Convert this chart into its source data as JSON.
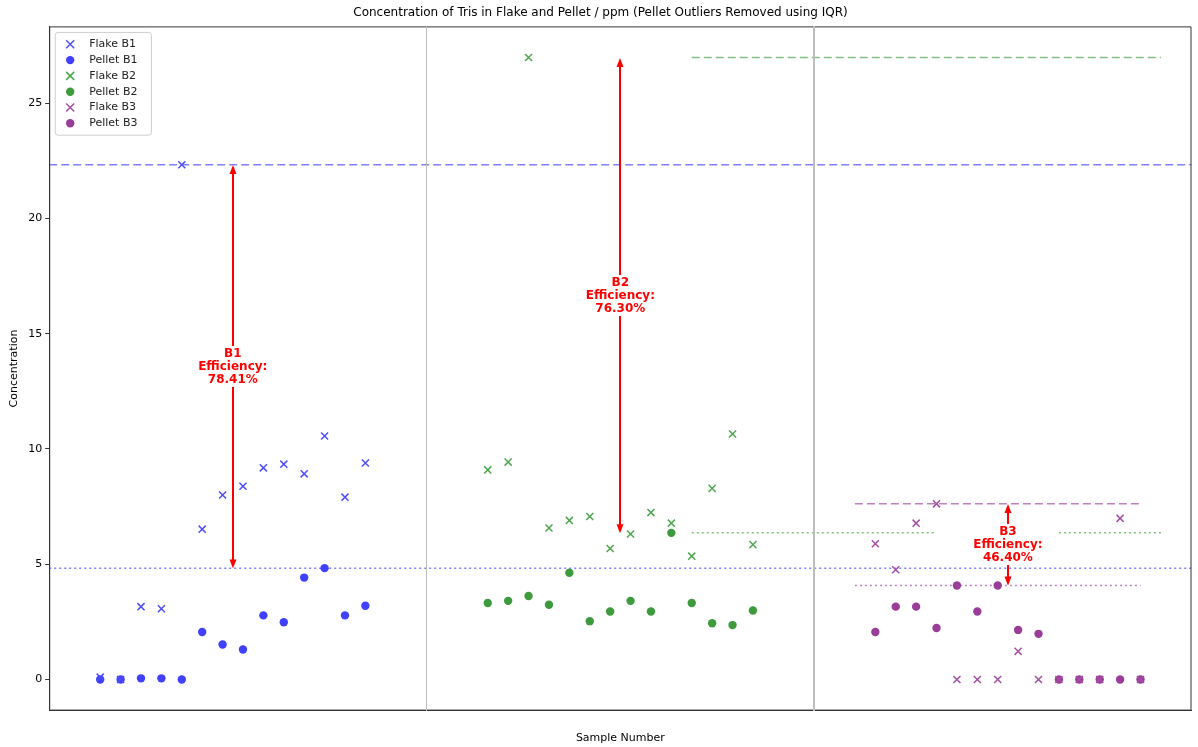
{
  "chart_data": {
    "type": "scatter",
    "title": "Concentration of Tris in Flake and Pellet / ppm (Pellet Outliers Removed using IQR)",
    "xlabel": "Sample Number",
    "ylabel": "Concentration",
    "categories": [
      null,
      null,
      null,
      null,
      null,
      null,
      null,
      null,
      null,
      null,
      null,
      null,
      null,
      null,
      null,
      null,
      null,
      null,
      null,
      null,
      null,
      null,
      null,
      null,
      null,
      null,
      null,
      null,
      null,
      null,
      null,
      null,
      null,
      null,
      null,
      null,
      null,
      null,
      null,
      null,
      null,
      null,
      null,
      null,
      null,
      null,
      null,
      null,
      null,
      null,
      null,
      null,
      null,
      null,
      null,
      null
    ],
    "ylim": [
      -1.35,
      28.33
    ],
    "yticks": [
      0,
      5,
      10,
      15,
      20,
      25
    ],
    "grid": false,
    "legend": "top left",
    "series": [
      {
        "name": "Flake B1",
        "color": "#4d4dff",
        "marker": "cross",
        "values": [
          null,
          null,
          0.1,
          0.0,
          3.16,
          3.07,
          22.33,
          6.52,
          8.0,
          8.38,
          9.18,
          9.34,
          8.92,
          10.56,
          7.91,
          9.39,
          null,
          null,
          null,
          null,
          null,
          null,
          null,
          null,
          null,
          null,
          null,
          null,
          null,
          null,
          null,
          null,
          null,
          null,
          null,
          null,
          null,
          null,
          null,
          null,
          null,
          null,
          null,
          null,
          null,
          null,
          null,
          null,
          null,
          null,
          null,
          null,
          null,
          null,
          null,
          null
        ]
      },
      {
        "name": "Pellet B1",
        "color": "#4040ff",
        "marker": "circle",
        "values": [
          null,
          null,
          0.0,
          0.0,
          0.05,
          0.05,
          0.0,
          2.06,
          1.52,
          1.3,
          2.78,
          2.48,
          4.42,
          4.83,
          2.78,
          3.2,
          null,
          null,
          null,
          null,
          null,
          null,
          null,
          null,
          null,
          null,
          null,
          null,
          null,
          null,
          null,
          null,
          null,
          null,
          null,
          null,
          null,
          null,
          null,
          null,
          null,
          null,
          null,
          null,
          null,
          null,
          null,
          null,
          null,
          null,
          null,
          null,
          null,
          null,
          null,
          null
        ]
      },
      {
        "name": "Flake B2",
        "color": "#4da64d",
        "marker": "cross",
        "values": [
          null,
          null,
          null,
          null,
          null,
          null,
          null,
          null,
          null,
          null,
          null,
          null,
          null,
          null,
          null,
          null,
          null,
          null,
          null,
          null,
          null,
          9.09,
          9.43,
          26.98,
          6.57,
          6.9,
          7.07,
          5.68,
          6.31,
          7.24,
          6.78,
          5.35,
          8.29,
          10.65,
          5.85,
          null,
          null,
          null,
          null,
          null,
          null,
          null,
          null,
          null,
          null,
          null,
          null,
          null,
          null,
          null,
          null,
          null,
          null,
          null,
          null,
          null
        ]
      },
      {
        "name": "Pellet B2",
        "color": "#3d9a3d",
        "marker": "circle",
        "values": [
          null,
          null,
          null,
          null,
          null,
          null,
          null,
          null,
          null,
          null,
          null,
          null,
          null,
          null,
          null,
          null,
          null,
          null,
          null,
          null,
          null,
          3.32,
          3.41,
          3.62,
          3.24,
          4.63,
          2.53,
          2.95,
          3.41,
          2.95,
          6.36,
          3.32,
          2.44,
          2.36,
          2.99,
          null,
          null,
          null,
          null,
          null,
          null,
          null,
          null,
          null,
          null,
          null,
          null,
          null,
          null,
          null,
          null,
          null,
          null,
          null,
          null,
          null
        ]
      },
      {
        "name": "Flake B3",
        "color": "#a64da6",
        "marker": "cross",
        "values": [
          null,
          null,
          null,
          null,
          null,
          null,
          null,
          null,
          null,
          null,
          null,
          null,
          null,
          null,
          null,
          null,
          null,
          null,
          null,
          null,
          null,
          null,
          null,
          null,
          null,
          null,
          null,
          null,
          null,
          null,
          null,
          null,
          null,
          null,
          null,
          null,
          null,
          null,
          null,
          null,
          5.89,
          4.76,
          6.78,
          7.62,
          0.0,
          0.0,
          0.0,
          1.22,
          0.0,
          0.0,
          0.0,
          0.0,
          6.99,
          0.0,
          null,
          null
        ]
      },
      {
        "name": "Pellet B3",
        "color": "#993d99",
        "marker": "circle",
        "values": [
          null,
          null,
          null,
          null,
          null,
          null,
          null,
          null,
          null,
          null,
          null,
          null,
          null,
          null,
          null,
          null,
          null,
          null,
          null,
          null,
          null,
          null,
          null,
          null,
          null,
          null,
          null,
          null,
          null,
          null,
          null,
          null,
          null,
          null,
          null,
          null,
          null,
          null,
          null,
          null,
          2.06,
          3.16,
          3.16,
          2.23,
          4.08,
          2.95,
          4.08,
          2.15,
          1.98,
          0.0,
          0.0,
          0.0,
          0.0,
          0.0,
          null,
          null
        ]
      },
      {
        "type": "line",
        "color": "#80c080",
        "line_style": "dashed",
        "values": [
          null,
          null,
          null,
          null,
          null,
          null,
          null,
          null,
          null,
          null,
          null,
          null,
          null,
          null,
          null,
          null,
          null,
          null,
          null,
          null,
          null,
          null,
          null,
          null,
          null,
          null,
          null,
          null,
          null,
          null,
          null,
          26.98,
          26.98,
          26.98,
          26.98,
          26.98,
          26.98,
          26.98,
          26.98,
          26.98,
          26.98,
          26.98,
          26.98,
          26.98,
          26.98,
          26.98,
          26.98,
          26.98,
          26.98,
          26.98,
          26.98,
          26.98,
          26.98,
          26.98,
          26.98,
          null
        ]
      },
      {
        "type": "line",
        "color": "#80c080",
        "line_style": "dotted",
        "values": [
          null,
          null,
          null,
          null,
          null,
          null,
          null,
          null,
          null,
          null,
          null,
          null,
          null,
          null,
          null,
          null,
          null,
          null,
          null,
          null,
          null,
          null,
          null,
          null,
          null,
          null,
          null,
          null,
          null,
          null,
          null,
          6.36,
          6.36,
          6.36,
          6.36,
          6.36,
          6.36,
          6.36,
          6.36,
          6.36,
          6.36,
          6.36,
          6.36,
          6.36,
          null,
          null,
          null,
          null,
          null,
          6.36,
          6.36,
          6.36,
          6.36,
          6.36,
          6.36,
          null
        ]
      },
      {
        "type": "line",
        "color": "#c080c0",
        "line_style": "dashed",
        "values": [
          null,
          null,
          null,
          null,
          null,
          null,
          null,
          null,
          null,
          null,
          null,
          null,
          null,
          null,
          null,
          null,
          null,
          null,
          null,
          null,
          null,
          null,
          null,
          null,
          null,
          null,
          null,
          null,
          null,
          null,
          null,
          null,
          null,
          null,
          null,
          null,
          null,
          null,
          null,
          7.62,
          7.62,
          7.62,
          7.62,
          7.62,
          7.62,
          7.62,
          7.62,
          7.62,
          7.62,
          7.62,
          7.62,
          7.62,
          7.62,
          7.62,
          null,
          null
        ]
      },
      {
        "type": "line",
        "color": "#c080c0",
        "line_style": "dotted",
        "values": [
          null,
          null,
          null,
          null,
          null,
          null,
          null,
          null,
          null,
          null,
          null,
          null,
          null,
          null,
          null,
          null,
          null,
          null,
          null,
          null,
          null,
          null,
          null,
          null,
          null,
          null,
          null,
          null,
          null,
          null,
          null,
          null,
          null,
          null,
          null,
          null,
          null,
          null,
          null,
          4.08,
          4.08,
          4.08,
          4.08,
          4.08,
          4.08,
          4.08,
          4.08,
          4.08,
          4.08,
          4.08,
          4.08,
          4.08,
          4.08,
          4.08,
          null,
          null
        ]
      }
    ],
    "ref_lines": [
      {
        "axis": "y",
        "value": 22.33,
        "color": "#8080ff",
        "line_style": "dashed"
      },
      {
        "axis": "y",
        "value": 4.83,
        "color": "#8080ff",
        "line_style": "dotted"
      }
    ],
    "annotations": [
      "B1\nEfficiency:\n78.41%",
      "B2\nEfficiency:\n76.30%",
      "B3\nEfficiency:\n46.40%"
    ]
  }
}
